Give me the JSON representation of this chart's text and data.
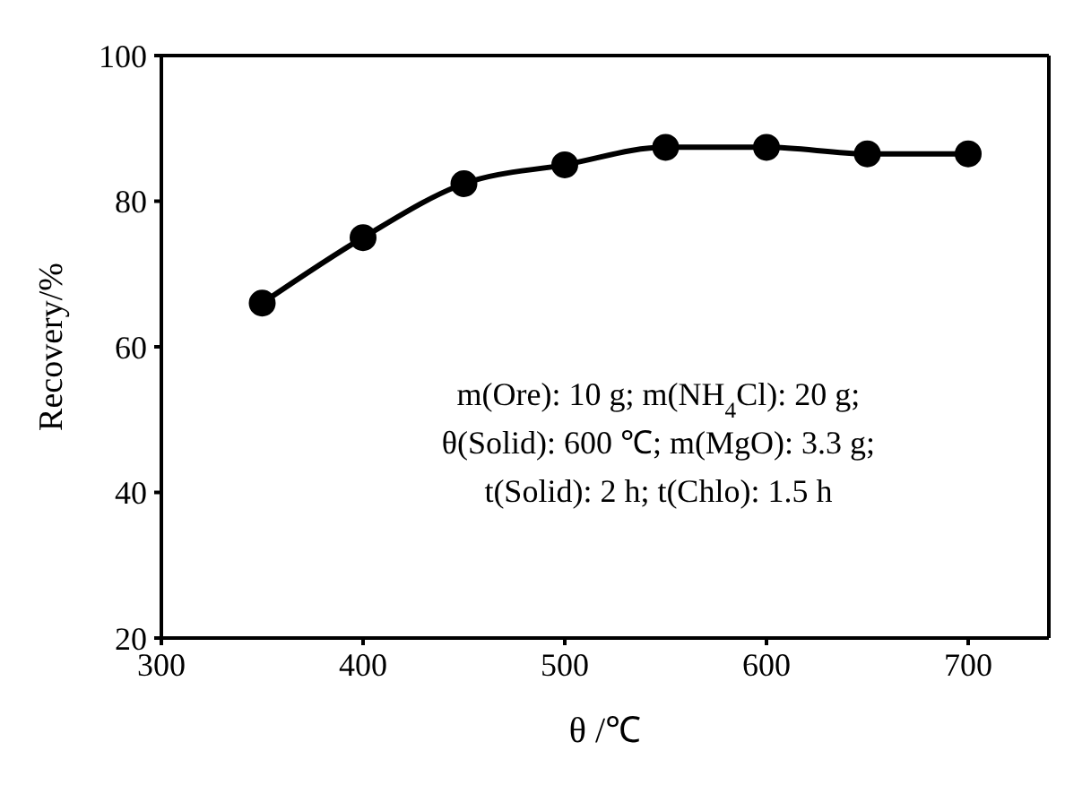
{
  "chart_data": {
    "type": "line",
    "xlabel": "θ /℃",
    "ylabel": "Recovery/%",
    "x": [
      350,
      400,
      450,
      500,
      550,
      600,
      650,
      700
    ],
    "series": [
      {
        "color": "#000000",
        "values": [
          66,
          75,
          82.4,
          85,
          87.4,
          87.4,
          86.5,
          86.5
        ]
      }
    ],
    "xlim": [
      300,
      740
    ],
    "xticks": [
      300,
      400,
      500,
      600,
      700
    ],
    "ylim": [
      20,
      100
    ],
    "yticks": [
      20,
      40,
      60,
      80,
      100
    ],
    "marker": "circle",
    "line_style": "solid",
    "grid": false,
    "legend": false,
    "annotations": [
      "m(Ore): 10 g;  m(NH$_{4}$Cl): 20 g;",
      "θ(Solid): 600 ℃;  m(MgO): 3.3 g;",
      "t(Solid): 2 h;  t(Chlo): 1.5 h"
    ]
  }
}
